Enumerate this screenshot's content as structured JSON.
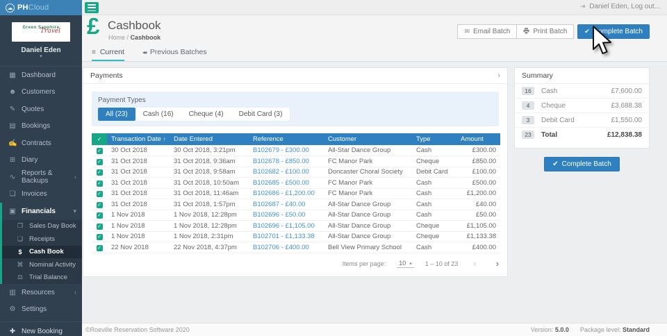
{
  "topbar": {
    "brand": {
      "ph": "PH",
      "cloud": "Cloud"
    },
    "logout_label": "Daniel Eden, Log out..."
  },
  "sidebar": {
    "org_name_line1": "Green Sapphire",
    "org_name_line2": "Travel",
    "user_name": "Daniel Eden",
    "items": [
      {
        "label": "Dashboard",
        "icon": "dashboard-icon",
        "glyph": "▦"
      },
      {
        "label": "Customers",
        "icon": "customers-icon",
        "glyph": "☻"
      },
      {
        "label": "Quotes",
        "icon": "quotes-icon",
        "glyph": "✎"
      },
      {
        "label": "Bookings",
        "icon": "bookings-icon",
        "glyph": "▤"
      },
      {
        "label": "Contracts",
        "icon": "contracts-icon",
        "glyph": "✍"
      },
      {
        "label": "Diary",
        "icon": "diary-icon",
        "glyph": "⊞"
      },
      {
        "label": "Reports & Backups",
        "icon": "reports-icon",
        "glyph": "∿",
        "chevron": "‹"
      },
      {
        "label": "Invoices",
        "icon": "invoices-icon",
        "glyph": "❏"
      },
      {
        "label": "Financials",
        "icon": "financials-icon",
        "glyph": "▣",
        "chevron": "▾",
        "accent": true,
        "section_open": true
      },
      {
        "label": "Sales Day Book",
        "icon": "sales-day-book-icon",
        "glyph": "❐",
        "sub": true,
        "accent": true
      },
      {
        "label": "Receipts",
        "icon": "receipts-icon",
        "glyph": "❑",
        "sub": true,
        "accent": true
      },
      {
        "label": "Cash Book",
        "icon": "cash-book-icon",
        "glyph": "$",
        "sub": true,
        "accent": true,
        "active": true
      },
      {
        "label": "Nominal Activity",
        "icon": "nominal-activity-icon",
        "glyph": "⌘",
        "sub": true,
        "accent": true
      },
      {
        "label": "Trial Balance",
        "icon": "trial-balance-icon",
        "glyph": "⚖",
        "sub": true,
        "accent": true
      },
      {
        "label": "Resources",
        "icon": "resources-icon",
        "glyph": "▥",
        "chevron": "‹"
      },
      {
        "label": "Settings",
        "icon": "settings-icon",
        "glyph": "⚙"
      }
    ],
    "new_booking_label": "New Booking"
  },
  "header": {
    "title": "Cashbook",
    "breadcrumb_home": "Home",
    "breadcrumb_sep": "/",
    "breadcrumb_current": "Cashbook",
    "buttons": {
      "email": "Email Batch",
      "print": "Print Batch",
      "complete": "Complete Batch"
    }
  },
  "tabs": [
    {
      "label": "Current",
      "active": true
    },
    {
      "label": "Previous Batches",
      "active": false
    }
  ],
  "payments": {
    "panel_title": "Payments",
    "filter_label": "Payment Types",
    "filters": [
      {
        "label": "All (23)",
        "active": true
      },
      {
        "label": "Cash (16)",
        "active": false
      },
      {
        "label": "Cheque (4)",
        "active": false
      },
      {
        "label": "Debit Card (3)",
        "active": false
      }
    ],
    "table": {
      "columns": [
        "Transaction Date",
        "Date Entered",
        "Reference",
        "Customer",
        "Type",
        "Amount"
      ],
      "sort_column": "Transaction Date",
      "sort_direction": "asc",
      "rows": [
        {
          "transaction_date": "30 Oct 2018",
          "date_entered": "30 Oct 2018, 3:21pm",
          "reference": "B102679 - £300.00",
          "customer": "All-Star Dance Group",
          "type": "Cash",
          "amount": "£300.00"
        },
        {
          "transaction_date": "31 Oct 2018",
          "date_entered": "31 Oct 2018, 9:36am",
          "reference": "B102678 - £850.00",
          "customer": "FC Manor Park",
          "type": "Cheque",
          "amount": "£850.00"
        },
        {
          "transaction_date": "31 Oct 2018",
          "date_entered": "31 Oct 2018, 9:58am",
          "reference": "B102682 - £100.00",
          "customer": "Doncaster Choral Society",
          "type": "Debit Card",
          "amount": "£100.00"
        },
        {
          "transaction_date": "31 Oct 2018",
          "date_entered": "31 Oct 2018, 10:50am",
          "reference": "B102685 - £500.00",
          "customer": "FC Manor Park",
          "type": "Cash",
          "amount": "£500.00"
        },
        {
          "transaction_date": "31 Oct 2018",
          "date_entered": "31 Oct 2018, 11:46am",
          "reference": "B102686 - £1,200.00",
          "customer": "FC Manor Park",
          "type": "Cash",
          "amount": "£1,200.00"
        },
        {
          "transaction_date": "31 Oct 2018",
          "date_entered": "31 Oct 2018, 1:57pm",
          "reference": "B102687 - £40.00",
          "customer": "All-Star Dance Group",
          "type": "Cash",
          "amount": "£40.00"
        },
        {
          "transaction_date": "1 Nov 2018",
          "date_entered": "1 Nov 2018, 12:28pm",
          "reference": "B102696 - £50.00",
          "customer": "All-Star Dance Group",
          "type": "Cash",
          "amount": "£50.00"
        },
        {
          "transaction_date": "1 Nov 2018",
          "date_entered": "1 Nov 2018, 12:28pm",
          "reference": "B102696 - £1,105.00",
          "customer": "All-Star Dance Group",
          "type": "Cheque",
          "amount": "£1,105.00"
        },
        {
          "transaction_date": "1 Nov 2018",
          "date_entered": "1 Nov 2018, 2:31pm",
          "reference": "B102701 - £1,133.38",
          "customer": "All-Star Dance Group",
          "type": "Cheque",
          "amount": "£1,133.38"
        },
        {
          "transaction_date": "22 Nov 2018",
          "date_entered": "22 Nov 2018, 4:37pm",
          "reference": "B102706 - £400.00",
          "customer": "Bell View Primary School",
          "type": "Cash",
          "amount": "£400.00"
        }
      ]
    },
    "pagination": {
      "items_per_page_label": "Items per page:",
      "items_per_page": "10",
      "range": "1 – 10 of 23"
    }
  },
  "summary": {
    "panel_title": "Summary",
    "rows": [
      {
        "count": "16",
        "label": "Cash",
        "amount": "£7,600.00"
      },
      {
        "count": "4",
        "label": "Cheque",
        "amount": "£3,688.38"
      },
      {
        "count": "3",
        "label": "Debit Card",
        "amount": "£1,550.00"
      },
      {
        "count": "23",
        "label": "Total",
        "amount": "£12,838.38",
        "bold": true
      }
    ],
    "complete_button": "Complete Batch"
  },
  "footer": {
    "copyright": "©Roeville Reservation Software 2020",
    "version_label": "Version:",
    "version": "5.0.0",
    "package_label": "Package level:",
    "package": "Standard"
  },
  "colors": {
    "accent_green": "#18a689",
    "primary_blue": "#2e80c0",
    "brand_blue": "#3d82b6",
    "sidebar_bg": "#31404f",
    "link_blue": "#4191d4",
    "tab_teal": "#2bbcc9"
  }
}
